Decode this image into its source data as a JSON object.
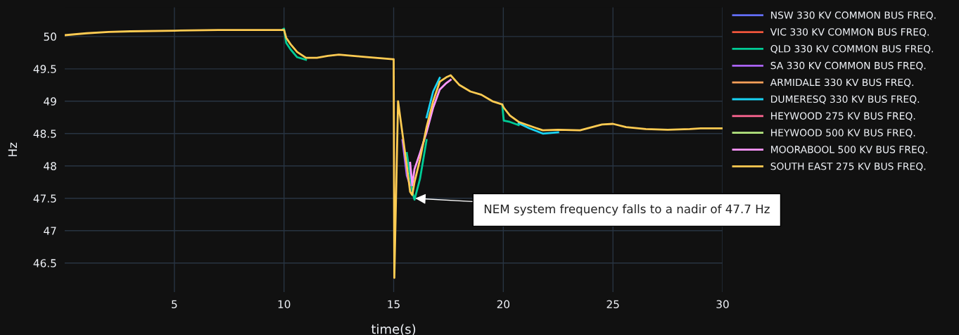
{
  "chart_data": {
    "type": "line",
    "xlabel": "time(s)",
    "ylabel": "Hz",
    "xlim": [
      0,
      30
    ],
    "xticks": [
      5,
      10,
      15,
      20,
      25,
      30
    ],
    "ylim": [
      46.05,
      50.45
    ],
    "yticks": [
      46.5,
      47,
      47.5,
      48,
      48.5,
      49,
      49.5,
      50
    ],
    "grid": true,
    "legend": "right",
    "marker": "none",
    "line_style": "solid",
    "x": [
      0,
      1,
      2,
      3,
      5,
      7,
      9.9,
      10.0,
      10.1,
      10.3,
      10.6,
      11.0,
      11.5,
      12.0,
      12.5,
      13.5,
      14.95,
      15.0,
      15.03,
      15.2,
      15.4,
      15.6,
      15.75,
      15.85,
      15.95,
      16.2,
      16.5,
      16.8,
      17.1,
      17.4,
      17.6,
      18.0,
      18.5,
      19.0,
      19.5,
      19.95,
      20.02,
      20.3,
      20.7,
      21.2,
      21.8,
      22.5,
      23.5,
      24.5,
      25.0,
      25.6,
      26.5,
      27.5,
      28.5,
      29.0,
      30.0
    ],
    "annotations": [
      {
        "text": "NEM system frequency falls to a nadir of 47.7 Hz",
        "x": 15.9,
        "y": 47.5
      }
    ],
    "series": [
      {
        "name": "NSW 330 KV COMMON BUS FREQ.",
        "color": "#636efa",
        "values": [
          null,
          null,
          null,
          null,
          null,
          null,
          null,
          null,
          null,
          null,
          null,
          null,
          null,
          null,
          null,
          null,
          null,
          null,
          null,
          null,
          null,
          null,
          null,
          null,
          null,
          null,
          null,
          null,
          null,
          null,
          null,
          null,
          null,
          null,
          null,
          null,
          null,
          null,
          null,
          null,
          null,
          null,
          null,
          null,
          null,
          null,
          null,
          null,
          null,
          null,
          null
        ]
      },
      {
        "name": "VIC 330 KV COMMON BUS FREQ.",
        "color": "#ef553b",
        "values": [
          null,
          null,
          null,
          null,
          null,
          null,
          null,
          null,
          null,
          null,
          null,
          null,
          null,
          null,
          null,
          null,
          null,
          null,
          null,
          null,
          null,
          null,
          null,
          null,
          null,
          null,
          null,
          null,
          null,
          null,
          null,
          null,
          null,
          null,
          null,
          null,
          null,
          null,
          null,
          null,
          null,
          null,
          null,
          null,
          null,
          null,
          null,
          null,
          null,
          null,
          null
        ]
      },
      {
        "name": "QLD 330 KV COMMON BUS FREQ.",
        "color": "#00cc96",
        "values": [
          null,
          null,
          null,
          null,
          null,
          null,
          50.1,
          50.12,
          49.9,
          49.8,
          49.68,
          49.64,
          null,
          null,
          null,
          null,
          null,
          null,
          null,
          null,
          null,
          48.2,
          47.85,
          47.6,
          47.48,
          47.8,
          48.4,
          null,
          null,
          null,
          null,
          null,
          null,
          null,
          null,
          48.95,
          48.7,
          48.68,
          48.63,
          null,
          null,
          null,
          null,
          null,
          null,
          null,
          null,
          null,
          null,
          null,
          null
        ]
      },
      {
        "name": "SA 330 KV COMMON BUS FREQ.",
        "color": "#ab63fa",
        "values": [
          null,
          null,
          null,
          null,
          null,
          null,
          null,
          null,
          null,
          null,
          null,
          null,
          null,
          null,
          null,
          null,
          null,
          null,
          null,
          null,
          48.4,
          47.85,
          47.7,
          null,
          null,
          null,
          null,
          null,
          null,
          null,
          null,
          null,
          null,
          null,
          null,
          null,
          null,
          null,
          null,
          null,
          null,
          null,
          null,
          null,
          null,
          null,
          null,
          null,
          null,
          null,
          null
        ]
      },
      {
        "name": "ARMIDALE 330 KV BUS FREQ.",
        "color": "#ffa15a",
        "values": [
          null,
          null,
          null,
          null,
          null,
          null,
          null,
          null,
          null,
          null,
          null,
          null,
          null,
          null,
          null,
          null,
          null,
          null,
          null,
          null,
          null,
          null,
          null,
          null,
          null,
          null,
          null,
          null,
          null,
          null,
          null,
          null,
          null,
          null,
          null,
          null,
          null,
          null,
          null,
          null,
          null,
          null,
          null,
          null,
          null,
          null,
          null,
          null,
          null,
          null,
          null
        ]
      },
      {
        "name": "DUMERESQ 330 KV BUS FREQ.",
        "color": "#19d3f3",
        "values": [
          null,
          null,
          null,
          null,
          null,
          null,
          null,
          null,
          null,
          null,
          null,
          null,
          null,
          null,
          null,
          null,
          null,
          null,
          null,
          null,
          null,
          null,
          null,
          null,
          null,
          null,
          48.75,
          49.15,
          49.36,
          null,
          null,
          null,
          null,
          null,
          null,
          null,
          null,
          null,
          48.66,
          48.58,
          48.5,
          48.52,
          null,
          null,
          null,
          null,
          null,
          null,
          null,
          null,
          null
        ]
      },
      {
        "name": "HEYWOOD 275 KV BUS FREQ.",
        "color": "#ff6692",
        "values": [
          null,
          null,
          null,
          null,
          null,
          null,
          null,
          null,
          null,
          null,
          null,
          null,
          null,
          null,
          null,
          null,
          null,
          null,
          null,
          null,
          null,
          null,
          null,
          null,
          null,
          null,
          null,
          null,
          null,
          null,
          null,
          null,
          null,
          null,
          null,
          null,
          null,
          null,
          null,
          null,
          null,
          null,
          null,
          null,
          null,
          null,
          null,
          null,
          null,
          null,
          null
        ]
      },
      {
        "name": "HEYWOOD 500 KV BUS FREQ.",
        "color": "#b6e880",
        "values": [
          null,
          null,
          null,
          null,
          null,
          null,
          null,
          null,
          null,
          null,
          null,
          null,
          null,
          null,
          null,
          null,
          null,
          null,
          null,
          null,
          null,
          null,
          null,
          null,
          null,
          null,
          null,
          null,
          null,
          null,
          null,
          null,
          null,
          null,
          null,
          null,
          null,
          null,
          null,
          null,
          null,
          null,
          null,
          null,
          null,
          null,
          null,
          null,
          null,
          null,
          null
        ]
      },
      {
        "name": "MOORABOOL 500 KV BUS FREQ.",
        "color": "#ff97ff",
        "values": [
          null,
          null,
          null,
          null,
          null,
          null,
          null,
          null,
          null,
          null,
          null,
          null,
          null,
          null,
          null,
          null,
          null,
          null,
          null,
          null,
          null,
          null,
          48.05,
          47.7,
          47.95,
          48.2,
          48.52,
          48.9,
          49.18,
          49.28,
          49.33,
          null,
          null,
          null,
          null,
          null,
          null,
          null,
          null,
          null,
          null,
          null,
          null,
          null,
          null,
          null,
          null,
          null,
          null,
          null,
          null
        ]
      },
      {
        "name": "SOUTH EAST 275 KV BUS FREQ.",
        "color": "#fecb52",
        "values": [
          50.02,
          50.05,
          50.07,
          50.08,
          50.09,
          50.1,
          50.1,
          50.1,
          49.98,
          49.88,
          49.76,
          49.67,
          49.67,
          49.7,
          49.72,
          49.69,
          49.65,
          49.65,
          46.27,
          49.0,
          48.5,
          48.0,
          47.6,
          47.55,
          47.75,
          48.1,
          48.6,
          49.0,
          49.3,
          49.37,
          49.4,
          49.25,
          49.15,
          49.1,
          49.0,
          48.95,
          48.9,
          48.78,
          48.68,
          48.62,
          48.55,
          48.56,
          48.55,
          48.64,
          48.65,
          48.6,
          48.57,
          48.56,
          48.57,
          48.58,
          48.58
        ]
      }
    ]
  }
}
